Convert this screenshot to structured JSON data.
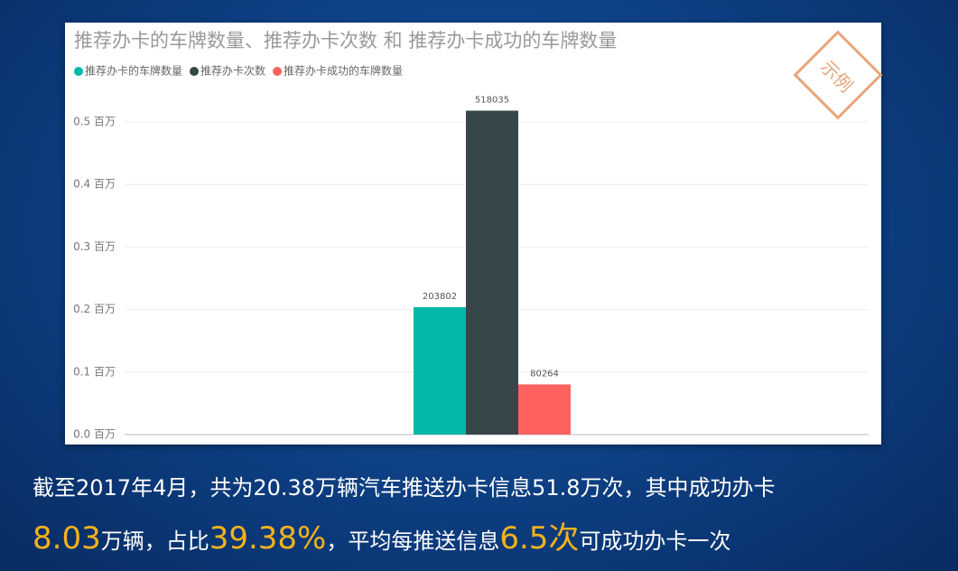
{
  "chart_data": {
    "type": "bar",
    "title": "推荐办卡的车牌数量、推荐办卡次数 和 推荐办卡成功的车牌数量",
    "categories": [
      null
    ],
    "series": [
      {
        "name": "推荐办卡的车牌数量",
        "color": "#01b8aa",
        "values": [
          203802
        ]
      },
      {
        "name": "推荐办卡次数",
        "color": "#374649",
        "values": [
          518035
        ]
      },
      {
        "name": "推荐办卡成功的车牌数量",
        "color": "#fd625e",
        "values": [
          80264
        ]
      }
    ],
    "ylim": [
      0,
      550000
    ],
    "yticks": [
      {
        "value": 0,
        "label": "0.0 百万"
      },
      {
        "value": 100000,
        "label": "0.1 百万"
      },
      {
        "value": 200000,
        "label": "0.2 百万"
      },
      {
        "value": 300000,
        "label": "0.3 百万"
      },
      {
        "value": 400000,
        "label": "0.4 百万"
      },
      {
        "value": 500000,
        "label": "0.5 百万"
      }
    ],
    "grid": true,
    "legend": "top-left",
    "stamp": "示例"
  },
  "caption": [
    [
      {
        "text": "截至2017年4月，共为20.38万辆汽车推送办卡信息51.8万次，其中成功办卡",
        "emphasis": false
      }
    ],
    [
      {
        "text": "8.03",
        "emphasis": true
      },
      {
        "text": "万辆，占比",
        "emphasis": false
      },
      {
        "text": "39.38%",
        "emphasis": true
      },
      {
        "text": "，平均每推送信息",
        "emphasis": false
      },
      {
        "text": "6.5次",
        "emphasis": true
      },
      {
        "text": "可成功办卡一次",
        "emphasis": false
      }
    ]
  ]
}
